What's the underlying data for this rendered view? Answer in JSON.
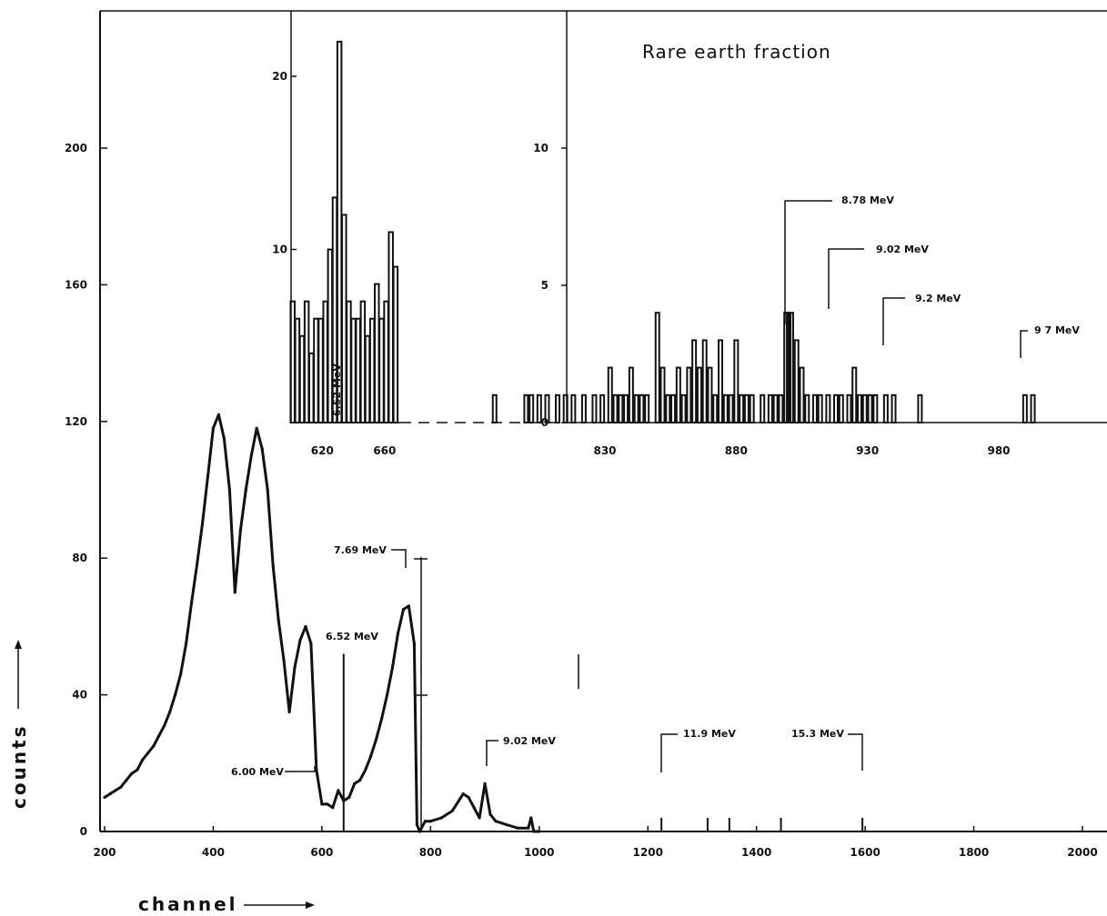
{
  "chart_data": [
    {
      "id": "main",
      "type": "line",
      "title": "",
      "xlabel": "channel",
      "ylabel": "counts",
      "xlim": [
        200,
        2050
      ],
      "ylim": [
        0,
        240
      ],
      "x_ticks": [
        200,
        400,
        600,
        800,
        1000,
        1200,
        1400,
        1600,
        1800,
        2000
      ],
      "y_ticks": [
        0,
        40,
        80,
        120,
        160,
        200
      ],
      "grid": false,
      "series": [
        {
          "x": [
            200,
            210,
            220,
            230,
            240,
            250,
            260,
            270,
            280,
            290,
            300,
            310,
            320,
            330,
            340,
            350,
            360,
            370,
            380,
            390,
            400,
            410,
            420,
            430,
            440,
            450,
            460,
            470,
            480,
            490,
            500,
            510,
            520,
            530,
            540,
            550,
            560,
            570,
            580,
            590,
            600,
            610,
            620,
            630,
            640,
            650,
            660,
            670,
            680,
            690,
            700,
            710,
            720,
            730,
            740,
            750,
            760,
            770,
            775,
            780,
            790,
            800,
            820,
            840,
            860,
            870,
            880,
            890,
            900,
            910,
            920,
            940,
            960,
            980,
            985,
            990,
            1000
          ],
          "y": [
            10,
            11,
            12,
            13,
            15,
            17,
            18,
            21,
            23,
            25,
            28,
            31,
            35,
            40,
            46,
            55,
            67,
            78,
            90,
            104,
            118,
            122,
            115,
            100,
            70,
            88,
            100,
            110,
            118,
            112,
            100,
            78,
            62,
            50,
            35,
            48,
            56,
            60,
            55,
            18,
            8,
            8,
            7,
            12,
            9,
            10,
            14,
            15,
            18,
            22,
            27,
            33,
            40,
            48,
            58,
            65,
            66,
            55,
            2,
            0,
            3,
            3,
            4,
            6,
            11,
            10,
            7,
            4,
            14,
            5,
            3,
            2,
            1,
            1,
            4,
            0,
            0
          ]
        }
      ],
      "spikes": [
        {
          "x": 640,
          "y": 52
        },
        {
          "x": 1225,
          "y": 4
        },
        {
          "x": 1310,
          "y": 4
        },
        {
          "x": 1350,
          "y": 4
        },
        {
          "x": 1445,
          "y": 4
        },
        {
          "x": 1595,
          "y": 4
        }
      ],
      "annotations": [
        {
          "text": "7.69 MeV",
          "x": 760
        },
        {
          "text": "6.52 MeV",
          "x": 640
        },
        {
          "text": "6.00 MeV",
          "x": 580
        },
        {
          "text": "9.02 MeV",
          "x": 900
        },
        {
          "text": "11.9 MeV",
          "x": 1225
        },
        {
          "text": "15.3 MeV",
          "x": 1595
        }
      ]
    },
    {
      "id": "inset_left",
      "type": "bar",
      "xlim": [
        600,
        670
      ],
      "ylim": [
        0,
        24
      ],
      "x_ticks": [
        620,
        660
      ],
      "y_ticks": [
        10,
        20
      ],
      "x": [
        601,
        604,
        607,
        610,
        613,
        616,
        619,
        622,
        625,
        628,
        631,
        634,
        637,
        640,
        643,
        646,
        649,
        652,
        655,
        658,
        661,
        664,
        667
      ],
      "values": [
        7,
        6,
        5,
        7,
        4,
        6,
        6,
        7,
        10,
        13,
        22,
        12,
        7,
        6,
        6,
        7,
        5,
        6,
        8,
        6,
        7,
        11,
        9
      ],
      "annotations": [
        {
          "text": "6.52 MeV",
          "x": 620
        }
      ]
    },
    {
      "id": "inset_right",
      "type": "bar",
      "title": "Rare earth fraction",
      "xlim": [
        780,
        1020
      ],
      "ylim": [
        0,
        15
      ],
      "x_ticks": [
        830,
        880,
        930,
        980
      ],
      "y_ticks": [
        0,
        5,
        10
      ],
      "x": [
        788,
        800,
        802,
        805,
        808,
        812,
        815,
        818,
        822,
        826,
        829,
        832,
        834,
        836,
        838,
        840,
        842,
        844,
        846,
        850,
        852,
        854,
        856,
        858,
        860,
        862,
        864,
        866,
        868,
        870,
        872,
        874,
        876,
        878,
        880,
        882,
        884,
        886,
        890,
        893,
        895,
        897,
        899,
        900,
        901,
        903,
        905,
        907,
        910,
        912,
        915,
        918,
        920,
        923,
        925,
        927,
        929,
        931,
        933,
        937,
        940,
        950,
        990,
        993
      ],
      "values": [
        1,
        1,
        1,
        1,
        1,
        1,
        1,
        1,
        1,
        1,
        1,
        2,
        1,
        1,
        1,
        2,
        1,
        1,
        1,
        4,
        2,
        1,
        1,
        2,
        1,
        2,
        3,
        2,
        3,
        2,
        1,
        3,
        1,
        1,
        3,
        1,
        1,
        1,
        1,
        1,
        1,
        1,
        4,
        4,
        4,
        3,
        2,
        1,
        1,
        1,
        1,
        1,
        1,
        1,
        2,
        1,
        1,
        1,
        1,
        1,
        1,
        1,
        1,
        1
      ],
      "annotations": [
        {
          "text": "8.78 MeV",
          "x": 880
        },
        {
          "text": "9.02 MeV",
          "x": 900
        },
        {
          "text": "9.2 MeV",
          "x": 925
        },
        {
          "text": "9 7 MeV",
          "x": 985
        }
      ]
    }
  ]
}
